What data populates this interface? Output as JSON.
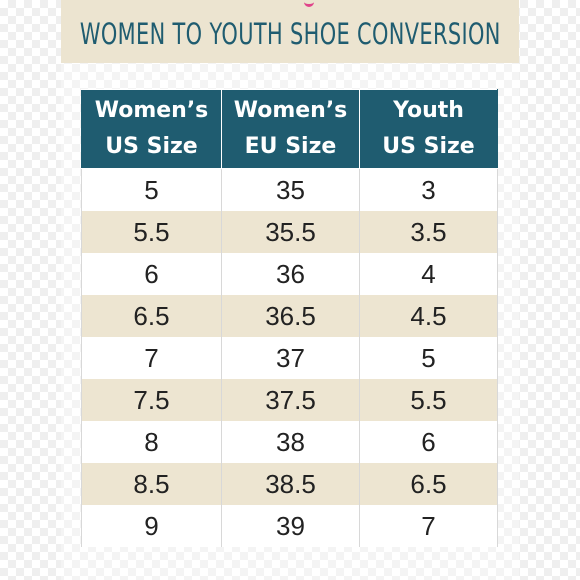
{
  "title": "WOMEN TO YOUTH SHOE CONVERSION",
  "colors": {
    "header_bg": "#1f5c70",
    "band_bg": "#ede5d1",
    "title_color": "#1f5c70",
    "accent_pink": "#e0448a"
  },
  "table": {
    "headers": [
      {
        "line1": "Women’s",
        "line2": "US Size"
      },
      {
        "line1": "Women’s",
        "line2": "EU Size"
      },
      {
        "line1": "Youth",
        "line2": "US Size"
      }
    ],
    "rows": [
      [
        "5",
        "35",
        "3"
      ],
      [
        "5.5",
        "35.5",
        "3.5"
      ],
      [
        "6",
        "36",
        "4"
      ],
      [
        "6.5",
        "36.5",
        "4.5"
      ],
      [
        "7",
        "37",
        "5"
      ],
      [
        "7.5",
        "37.5",
        "5.5"
      ],
      [
        "8",
        "38",
        "6"
      ],
      [
        "8.5",
        "38.5",
        "6.5"
      ],
      [
        "9",
        "39",
        "7"
      ]
    ]
  }
}
